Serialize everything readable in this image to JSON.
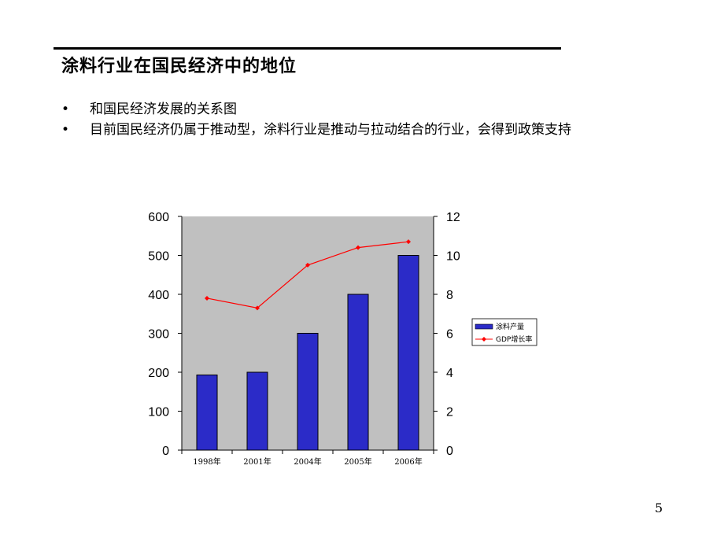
{
  "slide": {
    "title": "涂料行业在国民经济中的地位",
    "bullets": [
      "和国民经济发展的关系图",
      "目前国民经济仍属于推动型，涂料行业是推动与拉动结合的行业，会得到政策支持"
    ],
    "page_number": "5"
  },
  "chart_data": {
    "type": "bar",
    "categories": [
      "1998年",
      "2001年",
      "2004年",
      "2005年",
      "2006年"
    ],
    "series": [
      {
        "name": "涂料产量",
        "type": "bar",
        "axis": "left",
        "values": [
          193,
          200,
          300,
          400,
          500
        ],
        "color": "#2b2bc8"
      },
      {
        "name": "GDP增长率",
        "type": "line",
        "axis": "right",
        "values": [
          7.8,
          7.3,
          9.5,
          10.4,
          10.7
        ],
        "color": "#ff0000"
      }
    ],
    "y_left": {
      "lim": [
        0,
        600
      ],
      "ticks": [
        "0",
        "100",
        "200",
        "300",
        "400",
        "500",
        "600"
      ]
    },
    "y_right": {
      "lim": [
        0,
        12
      ],
      "ticks": [
        "0",
        "2",
        "4",
        "6",
        "8",
        "10",
        "12"
      ]
    },
    "plot_background": "#c0c0c0",
    "grid": false,
    "legend_placement": "right"
  }
}
